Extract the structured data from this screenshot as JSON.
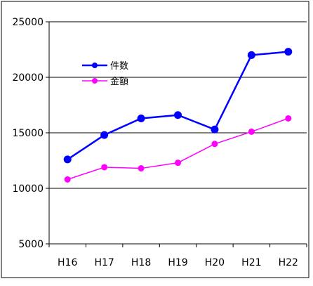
{
  "chart_data": {
    "type": "line",
    "title": "",
    "xlabel": "",
    "ylabel": "",
    "categories": [
      "H16",
      "H17",
      "H18",
      "H19",
      "H20",
      "H21",
      "H22"
    ],
    "ylim": [
      5000,
      25000
    ],
    "yticks": [
      5000,
      10000,
      15000,
      20000,
      25000
    ],
    "ytick_labels": [
      "5000",
      "10000",
      "15000",
      "20000",
      "25000"
    ],
    "grid": true,
    "legend_position": "top-left",
    "series": [
      {
        "name": "件数",
        "color": "#0000ff",
        "marker": "circle",
        "values": [
          12600,
          14800,
          16300,
          16600,
          15300,
          22000,
          22300
        ]
      },
      {
        "name": "金額",
        "color": "#ff00ff",
        "marker": "circle",
        "values": [
          10800,
          11900,
          11800,
          12300,
          14000,
          15100,
          16300
        ]
      }
    ]
  }
}
